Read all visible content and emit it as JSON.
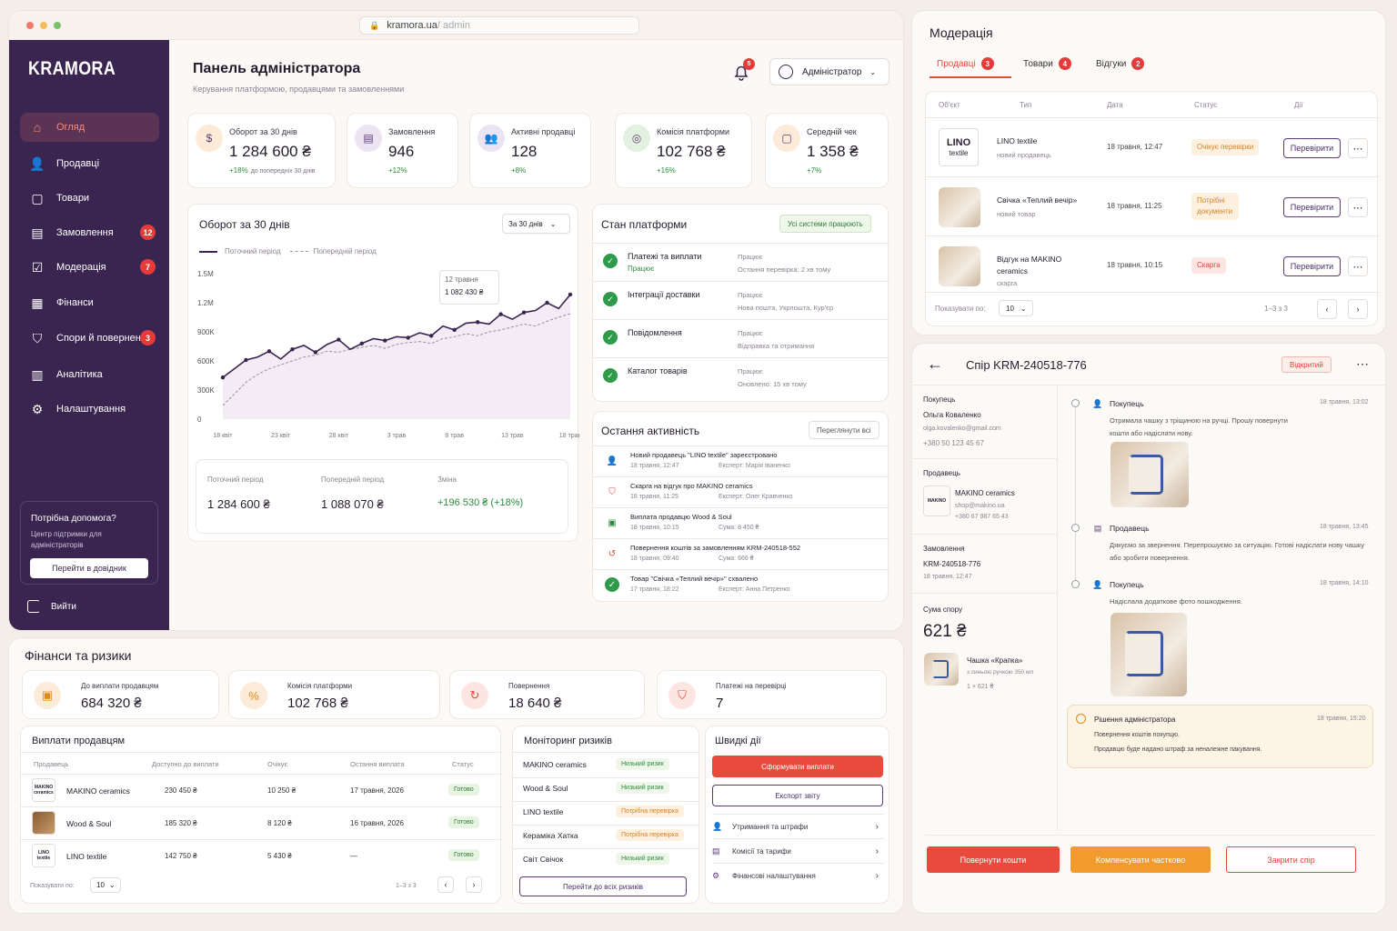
{
  "browser": {
    "url_host": "kramora.ua",
    "url_path": " / admin"
  },
  "brand": {
    "logo": "KRAMORA",
    "accent": "#e6493c",
    "sidebar_bg": "#3a2550"
  },
  "sidebar": {
    "items": [
      {
        "label": "Огляд",
        "icon": "home-icon",
        "active": true
      },
      {
        "label": "Продавці",
        "icon": "users-icon"
      },
      {
        "label": "Товари",
        "icon": "bag-icon"
      },
      {
        "label": "Замовлення",
        "icon": "clipboard-icon",
        "badge": "12"
      },
      {
        "label": "Модерація",
        "icon": "check-doc-icon",
        "badge": "7"
      },
      {
        "label": "Фінанси",
        "icon": "finance-icon"
      },
      {
        "label": "Спори й повернення",
        "icon": "shield-icon",
        "badge": "3"
      },
      {
        "label": "Аналітика",
        "icon": "chart-icon"
      },
      {
        "label": "Налаштування",
        "icon": "gear-icon"
      }
    ],
    "help": {
      "title": "Потрібна допомога?",
      "text": "Центр підтримки для адміністраторів",
      "button": "Перейти в довідник"
    },
    "logout": "Вийти"
  },
  "header": {
    "title": "Панель адміністратора",
    "subtitle": "Керування платформою, продавцями та замовленнями",
    "notif_count": "5",
    "user": "Адміністратор"
  },
  "kpis": [
    {
      "title": "Оборот за 30 днів",
      "value": "1 284 600 ₴",
      "delta": "+18%",
      "delta_note": "до попередніх 30 днів"
    },
    {
      "title": "Замовлення",
      "value": "946",
      "delta": "+12%"
    },
    {
      "title": "Активні продавці",
      "value": "128",
      "delta": "+8%"
    },
    {
      "title": "Комісія платформи",
      "value": "102 768 ₴",
      "delta": "+16%"
    },
    {
      "title": "Середній чек",
      "value": "1 358 ₴",
      "delta": "+7%"
    }
  ],
  "turnover": {
    "title": "Оборот за 30 днів",
    "period": "За 30 днів",
    "legend_current": "Поточний період",
    "legend_prev": "Попередній період",
    "tooltip_date": "12 травня",
    "tooltip_value": "1 082 430 ₴",
    "summary": [
      {
        "label": "Поточний період",
        "value": "1 284 600 ₴"
      },
      {
        "label": "Попередній період",
        "value": "1 088 070 ₴"
      },
      {
        "label": "Зміна",
        "value": "+196 530 ₴ (+18%)"
      }
    ]
  },
  "chart_data": {
    "type": "line",
    "title": "Оборот за 30 днів",
    "x_ticks": [
      "18 квіт",
      "23 квіт",
      "28 квіт",
      "3 трав",
      "8 трав",
      "13 трав",
      "18 трав"
    ],
    "y_ticks": [
      "0",
      "300K",
      "600K",
      "900K",
      "1.2M",
      "1.5M"
    ],
    "ylim": [
      0,
      1500000
    ],
    "x": [
      0,
      1,
      2,
      3,
      4,
      5,
      6,
      7,
      8,
      9,
      10,
      11,
      12,
      13,
      14,
      15,
      16,
      17,
      18,
      19,
      20,
      21,
      22,
      23,
      24,
      25,
      26,
      27,
      28,
      29,
      30
    ],
    "series": [
      {
        "name": "Поточний період",
        "values": [
          430000,
          520000,
          610000,
          640000,
          700000,
          620000,
          720000,
          760000,
          690000,
          770000,
          820000,
          720000,
          780000,
          830000,
          810000,
          850000,
          840000,
          890000,
          860000,
          960000,
          920000,
          990000,
          1000000,
          980000,
          1082430,
          1030000,
          1100000,
          1120000,
          1200000,
          1140000,
          1284600
        ]
      },
      {
        "name": "Попередній період",
        "values": [
          140000,
          260000,
          380000,
          460000,
          520000,
          560000,
          600000,
          640000,
          660000,
          700000,
          690000,
          720000,
          740000,
          760000,
          730000,
          770000,
          790000,
          800000,
          780000,
          830000,
          850000,
          880000,
          860000,
          900000,
          920000,
          950000,
          980000,
          960000,
          1010000,
          1050000,
          1088070
        ]
      }
    ]
  },
  "platform": {
    "title": "Стан платформи",
    "status": "Усі системи працюють",
    "items": [
      {
        "name": "Платежі та виплати",
        "sub": "Працює",
        "state": "Працює",
        "note": "Остання перевірка: 2 хв тому"
      },
      {
        "name": "Інтеграції доставки",
        "state": "Працює",
        "note": "Нова пошта, Укрпошта, Кур'єр"
      },
      {
        "name": "Повідомлення",
        "state": "Працює",
        "note": "Відправка та отримання"
      },
      {
        "name": "Каталог товарів",
        "state": "Працює",
        "note": "Оновлено: 15 хв тому"
      }
    ]
  },
  "activity": {
    "title": "Остання активність",
    "view_all": "Переглянути всі",
    "items": [
      {
        "text": "Новий продавець \"LINO textile\" зареєстровано",
        "time": "18 травня, 12:47",
        "who": "Експерт: Марія Іваненко",
        "icon": "user-icon"
      },
      {
        "text": "Скарга на відгук про MAKINO ceramics",
        "time": "18 травня, 11:25",
        "who": "Експерт: Олег Кравченко",
        "icon": "shield-icon"
      },
      {
        "text": "Виплата продавцю Wood & Soul",
        "time": "18 травня, 10:15",
        "who": "Сума: 8 450 ₴",
        "icon": "money-icon"
      },
      {
        "text": "Повернення коштів за замовленням KRM-240518-552",
        "time": "18 травня, 09:40",
        "who": "Сума: 666 ₴",
        "icon": "refund-icon"
      },
      {
        "text": "Товар \"Свічка «Теплий вечір»\" схвалено",
        "time": "17 травня, 18:22",
        "who": "Експерт: Анна Петренко",
        "icon": "check-icon"
      }
    ]
  },
  "moderation": {
    "title": "Модерація",
    "tabs": [
      {
        "label": "Продавці",
        "count": "3"
      },
      {
        "label": "Товари",
        "count": "4"
      },
      {
        "label": "Відгуки",
        "count": "2"
      }
    ],
    "columns": [
      "Об'єкт",
      "Тип",
      "Дата",
      "Статус",
      "Дії"
    ],
    "rows": [
      {
        "title": "LINO textile",
        "sub": "новий продавець",
        "date": "18 травня, 12:47",
        "status": "Очікує перевірки",
        "action": "Перевірити"
      },
      {
        "title": "Свічка «Теплий вечір»",
        "sub": "новий товар",
        "date": "18 травня, 11:25",
        "status": "Потрібні документи",
        "action": "Перевірити"
      },
      {
        "title": "Відгук на MAKINO ceramics",
        "sub": "скарга",
        "date": "18 травня, 10:15",
        "status": "Скарга",
        "action": "Перевірити"
      }
    ],
    "show_label": "Показувати по:",
    "per_page": "10",
    "range": "1–3 з 3"
  },
  "dispute": {
    "title": "Спір KRM-240518-776",
    "status": "Відкритий",
    "buyer_label": "Покупець",
    "buyer_name": "Ольга Коваленко",
    "buyer_email": "olga.kovalenko@gmail.com",
    "buyer_phone": "+380 50 123 45 67",
    "seller_label": "Продавець",
    "seller_name": "MAKINO ceramics",
    "seller_email": "shop@makino.ua",
    "seller_phone": "+380 67 987 65 43",
    "seller_logo": "MAKINO",
    "order_label": "Замовлення",
    "order_id": "KRM-240518-776",
    "order_date": "18 травня, 12:47",
    "sum_label": "Сума спору",
    "sum": "621 ₴",
    "product": "Чашка «Крапка»",
    "product_desc": "з синьою ручкою 350 мл",
    "product_qty": "1 × 621 ₴",
    "timeline": [
      {
        "who": "Покупець",
        "time": "18 травня, 13:02",
        "text": "Отримала чашку з тріщиною на ручці. Прошу повернути кошти або надіслати нову."
      },
      {
        "who": "Продавець",
        "time": "18 травня, 13:45",
        "text": "Дякуємо за звернення. Перепрошуємо за ситуацію. Готові надіслати нову чашку або зробити повернення."
      },
      {
        "who": "Покупець",
        "time": "18 травня, 14:10",
        "text": "Надіслала додаткове фото пошкодження."
      }
    ],
    "decision": {
      "title": "Рішення адміністратора",
      "time": "18 травня, 15:20",
      "line1": "Повернення коштів покупцю.",
      "line2": "Продавцю буде надано штраф за неналежне пакування."
    },
    "actions": [
      "Повернути кошти",
      "Компенсувати частково",
      "Закрити спір"
    ]
  },
  "finance": {
    "title": "Фінанси та ризики",
    "cards": [
      {
        "label": "До виплати продавцям",
        "value": "684 320 ₴"
      },
      {
        "label": "Комісія платформи",
        "value": "102 768 ₴"
      },
      {
        "label": "Повернення",
        "value": "18 640 ₴"
      },
      {
        "label": "Платежі на перевірці",
        "value": "7"
      }
    ]
  },
  "payouts": {
    "title": "Виплати продавцям",
    "columns": [
      "Продавець",
      "Доступно до виплати",
      "Очікує",
      "Остання виплата",
      "Статус"
    ],
    "rows": [
      {
        "name": "MAKINO ceramics",
        "avail": "230 450 ₴",
        "wait": "10 250 ₴",
        "last": "17 травня, 2026",
        "status": "Готово",
        "logo": "MAKINO ceramics"
      },
      {
        "name": "Wood & Soul",
        "avail": "185 320 ₴",
        "wait": "8 120 ₴",
        "last": "16 травня, 2026",
        "status": "Готово",
        "logo": ""
      },
      {
        "name": "LINO textile",
        "avail": "142 750 ₴",
        "wait": "5 430 ₴",
        "last": "—",
        "status": "Готово",
        "logo": "LINO textile"
      }
    ],
    "show_label": "Показувати по:",
    "per_page": "10",
    "range": "1–3 з 3"
  },
  "risks": {
    "title": "Моніторинг ризиків",
    "rows": [
      {
        "name": "MAKINO ceramics",
        "level": "Низький ризик",
        "kind": "low"
      },
      {
        "name": "Wood & Soul",
        "level": "Низький ризик",
        "kind": "low"
      },
      {
        "name": "LINO textile",
        "level": "Потрібна перевірка",
        "kind": "check"
      },
      {
        "name": "Кераміка Хатка",
        "level": "Потрібна перевірка",
        "kind": "check"
      },
      {
        "name": "Світ Свічок",
        "level": "Низький ризик",
        "kind": "low"
      }
    ],
    "button": "Перейти до всіх ризиків"
  },
  "quick": {
    "title": "Швидкі дії",
    "primary": "Сформувати виплати",
    "secondary": "Експорт звіту",
    "links": [
      "Утримання та штрафи",
      "Комісії та тарифи",
      "Фінансові налаштування"
    ]
  }
}
